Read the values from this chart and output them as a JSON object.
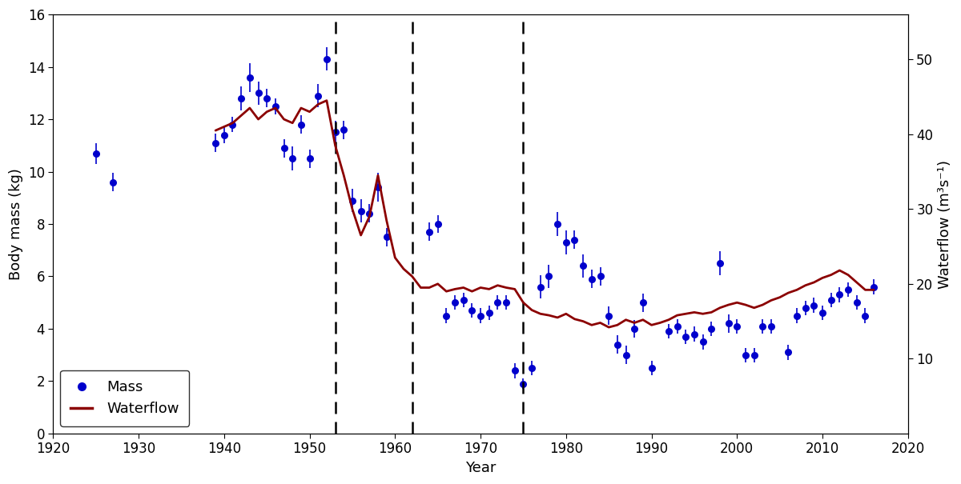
{
  "title": "",
  "xlabel": "Year",
  "ylabel_left": "Body mass (kg)",
  "ylabel_right": "Waterflow (m³s⁻¹)",
  "xlim": [
    1920,
    2020
  ],
  "ylim_left": [
    0,
    16
  ],
  "ylim_right": [
    0,
    56
  ],
  "xticks": [
    1920,
    1930,
    1940,
    1950,
    1960,
    1970,
    1980,
    1990,
    2000,
    2010,
    2020
  ],
  "yticks_left": [
    0,
    2,
    4,
    6,
    8,
    10,
    12,
    14,
    16
  ],
  "yticks_right": [
    10,
    20,
    30,
    40,
    50
  ],
  "dashed_lines": [
    1953,
    1962,
    1975
  ],
  "mass_color": "#0000cc",
  "waterflow_color": "#8b0000",
  "mass_points": [
    {
      "year": 1925,
      "mass": 10.7,
      "err": 0.4
    },
    {
      "year": 1927,
      "mass": 9.6,
      "err": 0.35
    },
    {
      "year": 1939,
      "mass": 11.1,
      "err": 0.35
    },
    {
      "year": 1940,
      "mass": 11.4,
      "err": 0.3
    },
    {
      "year": 1941,
      "mass": 11.8,
      "err": 0.3
    },
    {
      "year": 1942,
      "mass": 12.8,
      "err": 0.45
    },
    {
      "year": 1943,
      "mass": 13.6,
      "err": 0.55
    },
    {
      "year": 1944,
      "mass": 13.0,
      "err": 0.45
    },
    {
      "year": 1945,
      "mass": 12.8,
      "err": 0.35
    },
    {
      "year": 1946,
      "mass": 12.5,
      "err": 0.3
    },
    {
      "year": 1947,
      "mass": 10.9,
      "err": 0.35
    },
    {
      "year": 1948,
      "mass": 10.5,
      "err": 0.45
    },
    {
      "year": 1949,
      "mass": 11.8,
      "err": 0.35
    },
    {
      "year": 1950,
      "mass": 10.5,
      "err": 0.35
    },
    {
      "year": 1951,
      "mass": 12.9,
      "err": 0.45
    },
    {
      "year": 1952,
      "mass": 14.3,
      "err": 0.45
    },
    {
      "year": 1953,
      "mass": 11.5,
      "err": 0.45
    },
    {
      "year": 1954,
      "mass": 11.6,
      "err": 0.35
    },
    {
      "year": 1955,
      "mass": 8.9,
      "err": 0.45
    },
    {
      "year": 1956,
      "mass": 8.5,
      "err": 0.45
    },
    {
      "year": 1957,
      "mass": 8.4,
      "err": 0.35
    },
    {
      "year": 1958,
      "mass": 9.4,
      "err": 0.55
    },
    {
      "year": 1959,
      "mass": 7.5,
      "err": 0.35
    },
    {
      "year": 1964,
      "mass": 7.7,
      "err": 0.35
    },
    {
      "year": 1965,
      "mass": 8.0,
      "err": 0.35
    },
    {
      "year": 1966,
      "mass": 4.5,
      "err": 0.28
    },
    {
      "year": 1967,
      "mass": 5.0,
      "err": 0.28
    },
    {
      "year": 1968,
      "mass": 5.1,
      "err": 0.28
    },
    {
      "year": 1969,
      "mass": 4.7,
      "err": 0.28
    },
    {
      "year": 1970,
      "mass": 4.5,
      "err": 0.28
    },
    {
      "year": 1971,
      "mass": 4.6,
      "err": 0.28
    },
    {
      "year": 1972,
      "mass": 5.0,
      "err": 0.28
    },
    {
      "year": 1973,
      "mass": 5.0,
      "err": 0.28
    },
    {
      "year": 1974,
      "mass": 2.4,
      "err": 0.28
    },
    {
      "year": 1975,
      "mass": 1.9,
      "err": 0.2
    },
    {
      "year": 1976,
      "mass": 2.5,
      "err": 0.28
    },
    {
      "year": 1977,
      "mass": 5.6,
      "err": 0.45
    },
    {
      "year": 1978,
      "mass": 6.0,
      "err": 0.45
    },
    {
      "year": 1979,
      "mass": 8.0,
      "err": 0.45
    },
    {
      "year": 1980,
      "mass": 7.3,
      "err": 0.45
    },
    {
      "year": 1981,
      "mass": 7.4,
      "err": 0.35
    },
    {
      "year": 1982,
      "mass": 6.4,
      "err": 0.45
    },
    {
      "year": 1983,
      "mass": 5.9,
      "err": 0.35
    },
    {
      "year": 1984,
      "mass": 6.0,
      "err": 0.35
    },
    {
      "year": 1985,
      "mass": 4.5,
      "err": 0.35
    },
    {
      "year": 1986,
      "mass": 3.4,
      "err": 0.35
    },
    {
      "year": 1987,
      "mass": 3.0,
      "err": 0.35
    },
    {
      "year": 1988,
      "mass": 4.0,
      "err": 0.35
    },
    {
      "year": 1989,
      "mass": 5.0,
      "err": 0.35
    },
    {
      "year": 1990,
      "mass": 2.5,
      "err": 0.28
    },
    {
      "year": 1992,
      "mass": 3.9,
      "err": 0.28
    },
    {
      "year": 1993,
      "mass": 4.1,
      "err": 0.28
    },
    {
      "year": 1994,
      "mass": 3.7,
      "err": 0.28
    },
    {
      "year": 1995,
      "mass": 3.8,
      "err": 0.28
    },
    {
      "year": 1996,
      "mass": 3.5,
      "err": 0.28
    },
    {
      "year": 1997,
      "mass": 4.0,
      "err": 0.28
    },
    {
      "year": 1998,
      "mass": 6.5,
      "err": 0.45
    },
    {
      "year": 1999,
      "mass": 4.2,
      "err": 0.35
    },
    {
      "year": 2000,
      "mass": 4.1,
      "err": 0.28
    },
    {
      "year": 2001,
      "mass": 3.0,
      "err": 0.28
    },
    {
      "year": 2002,
      "mass": 3.0,
      "err": 0.28
    },
    {
      "year": 2003,
      "mass": 4.1,
      "err": 0.28
    },
    {
      "year": 2004,
      "mass": 4.1,
      "err": 0.28
    },
    {
      "year": 2006,
      "mass": 3.1,
      "err": 0.28
    },
    {
      "year": 2007,
      "mass": 4.5,
      "err": 0.28
    },
    {
      "year": 2008,
      "mass": 4.8,
      "err": 0.28
    },
    {
      "year": 2009,
      "mass": 4.9,
      "err": 0.28
    },
    {
      "year": 2010,
      "mass": 4.6,
      "err": 0.28
    },
    {
      "year": 2011,
      "mass": 5.1,
      "err": 0.28
    },
    {
      "year": 2012,
      "mass": 5.3,
      "err": 0.28
    },
    {
      "year": 2013,
      "mass": 5.5,
      "err": 0.28
    },
    {
      "year": 2014,
      "mass": 5.0,
      "err": 0.28
    },
    {
      "year": 2015,
      "mass": 4.5,
      "err": 0.28
    },
    {
      "year": 2016,
      "mass": 5.6,
      "err": 0.28
    }
  ],
  "waterflow": [
    {
      "year": 1939,
      "flow": 40.5
    },
    {
      "year": 1940,
      "flow": 41.0
    },
    {
      "year": 1941,
      "flow": 41.5
    },
    {
      "year": 1942,
      "flow": 42.5
    },
    {
      "year": 1943,
      "flow": 43.5
    },
    {
      "year": 1944,
      "flow": 42.0
    },
    {
      "year": 1945,
      "flow": 43.0
    },
    {
      "year": 1946,
      "flow": 43.5
    },
    {
      "year": 1947,
      "flow": 42.0
    },
    {
      "year": 1948,
      "flow": 41.5
    },
    {
      "year": 1949,
      "flow": 43.5
    },
    {
      "year": 1950,
      "flow": 43.0
    },
    {
      "year": 1951,
      "flow": 44.0
    },
    {
      "year": 1952,
      "flow": 44.5
    },
    {
      "year": 1953,
      "flow": 38.5
    },
    {
      "year": 1954,
      "flow": 34.5
    },
    {
      "year": 1955,
      "flow": 30.0
    },
    {
      "year": 1956,
      "flow": 26.5
    },
    {
      "year": 1957,
      "flow": 29.0
    },
    {
      "year": 1958,
      "flow": 34.5
    },
    {
      "year": 1959,
      "flow": 28.5
    },
    {
      "year": 1960,
      "flow": 23.5
    },
    {
      "year": 1961,
      "flow": 22.0
    },
    {
      "year": 1962,
      "flow": 21.0
    },
    {
      "year": 1963,
      "flow": 19.5
    },
    {
      "year": 1964,
      "flow": 19.5
    },
    {
      "year": 1965,
      "flow": 20.0
    },
    {
      "year": 1966,
      "flow": 19.0
    },
    {
      "year": 1967,
      "flow": 19.3
    },
    {
      "year": 1968,
      "flow": 19.5
    },
    {
      "year": 1969,
      "flow": 19.0
    },
    {
      "year": 1970,
      "flow": 19.5
    },
    {
      "year": 1971,
      "flow": 19.3
    },
    {
      "year": 1972,
      "flow": 19.8
    },
    {
      "year": 1973,
      "flow": 19.5
    },
    {
      "year": 1974,
      "flow": 19.3
    },
    {
      "year": 1975,
      "flow": 17.5
    },
    {
      "year": 1976,
      "flow": 16.5
    },
    {
      "year": 1977,
      "flow": 16.0
    },
    {
      "year": 1978,
      "flow": 15.8
    },
    {
      "year": 1979,
      "flow": 15.5
    },
    {
      "year": 1980,
      "flow": 16.0
    },
    {
      "year": 1981,
      "flow": 15.3
    },
    {
      "year": 1982,
      "flow": 15.0
    },
    {
      "year": 1983,
      "flow": 14.5
    },
    {
      "year": 1984,
      "flow": 14.8
    },
    {
      "year": 1985,
      "flow": 14.2
    },
    {
      "year": 1986,
      "flow": 14.5
    },
    {
      "year": 1987,
      "flow": 15.2
    },
    {
      "year": 1988,
      "flow": 14.8
    },
    {
      "year": 1989,
      "flow": 15.2
    },
    {
      "year": 1990,
      "flow": 14.5
    },
    {
      "year": 1991,
      "flow": 14.8
    },
    {
      "year": 1992,
      "flow": 15.2
    },
    {
      "year": 1993,
      "flow": 15.8
    },
    {
      "year": 1994,
      "flow": 16.0
    },
    {
      "year": 1995,
      "flow": 16.2
    },
    {
      "year": 1996,
      "flow": 16.0
    },
    {
      "year": 1997,
      "flow": 16.2
    },
    {
      "year": 1998,
      "flow": 16.8
    },
    {
      "year": 1999,
      "flow": 17.2
    },
    {
      "year": 2000,
      "flow": 17.5
    },
    {
      "year": 2001,
      "flow": 17.2
    },
    {
      "year": 2002,
      "flow": 16.8
    },
    {
      "year": 2003,
      "flow": 17.2
    },
    {
      "year": 2004,
      "flow": 17.8
    },
    {
      "year": 2005,
      "flow": 18.2
    },
    {
      "year": 2006,
      "flow": 18.8
    },
    {
      "year": 2007,
      "flow": 19.2
    },
    {
      "year": 2008,
      "flow": 19.8
    },
    {
      "year": 2009,
      "flow": 20.2
    },
    {
      "year": 2010,
      "flow": 20.8
    },
    {
      "year": 2011,
      "flow": 21.2
    },
    {
      "year": 2012,
      "flow": 21.8
    },
    {
      "year": 2013,
      "flow": 21.2
    },
    {
      "year": 2014,
      "flow": 20.2
    },
    {
      "year": 2015,
      "flow": 19.2
    },
    {
      "year": 2016,
      "flow": 19.2
    }
  ],
  "background_color": "#ffffff",
  "font_size": 13,
  "tick_fontsize": 12,
  "legend_fontsize": 13
}
